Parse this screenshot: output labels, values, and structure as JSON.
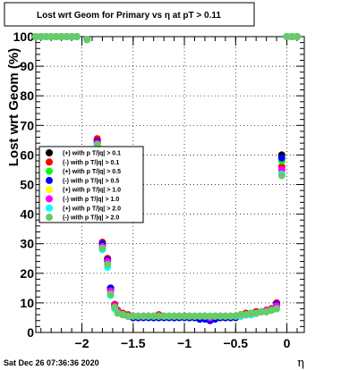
{
  "title": "Lost wrt Geom for Primary vs   η at pT > 0.11",
  "footer_date": "Sat Dec 26 07:36:36 2020",
  "chart_data": {
    "type": "scatter",
    "title": "Lost wrt Geom for Primary vs   η at pT > 0.11",
    "xlabel": "η",
    "ylabel": "Lost wrt Geom (%)",
    "xlim": [
      -2.45,
      0.17
    ],
    "ylim": [
      0,
      100
    ],
    "xticks": [
      -2,
      -1.5,
      -1,
      -0.5,
      0
    ],
    "xtick_labels": [
      "−2",
      "−1.5",
      "−1",
      "−0.5",
      "0"
    ],
    "yticks": [
      0,
      10,
      20,
      30,
      40,
      50,
      60,
      70,
      80,
      90,
      100
    ],
    "grid": true,
    "legend_position": "left",
    "series": [
      {
        "name": "(+) with p T/|q| > 0.1",
        "color": "#000000",
        "x": [
          -2.45,
          -2.4,
          -2.35,
          -2.3,
          -2.25,
          -2.2,
          -2.15,
          -2.1,
          -2.05,
          -1.95,
          -1.85,
          -1.8,
          -1.75,
          -1.72,
          -1.68,
          -1.65,
          -1.6,
          -1.55,
          -1.5,
          -1.45,
          -1.4,
          -1.35,
          -1.3,
          -1.25,
          -1.2,
          -1.15,
          -1.1,
          -1.05,
          -1.0,
          -0.95,
          -0.9,
          -0.85,
          -0.8,
          -0.75,
          -0.7,
          -0.65,
          -0.6,
          -0.55,
          -0.5,
          -0.45,
          -0.4,
          -0.35,
          -0.3,
          -0.25,
          -0.2,
          -0.15,
          -0.1,
          -0.05,
          0.0,
          0.05,
          0.1
        ],
        "y": [
          100,
          100,
          100,
          100,
          100,
          100,
          100,
          100,
          100,
          99,
          65,
          30,
          25,
          15,
          9,
          7,
          6,
          5.5,
          5,
          5,
          5.5,
          5.5,
          5,
          5,
          5.5,
          5.5,
          5,
          5.5,
          5.5,
          5,
          5,
          4.5,
          5,
          4.5,
          5,
          5,
          5,
          5,
          5.5,
          6,
          6,
          6.5,
          7,
          7,
          7.5,
          8,
          10,
          60,
          100,
          100,
          100
        ]
      },
      {
        "name": "(-) with p T/|q| > 0.1",
        "color": "#ff0000",
        "x": [
          -2.45,
          -2.4,
          -2.35,
          -2.3,
          -2.25,
          -2.2,
          -2.15,
          -2.1,
          -2.05,
          -1.95,
          -1.85,
          -1.8,
          -1.75,
          -1.72,
          -1.68,
          -1.65,
          -1.6,
          -1.55,
          -1.5,
          -1.45,
          -1.4,
          -1.35,
          -1.3,
          -1.25,
          -1.2,
          -1.15,
          -1.1,
          -1.05,
          -1.0,
          -0.95,
          -0.9,
          -0.85,
          -0.8,
          -0.75,
          -0.7,
          -0.65,
          -0.6,
          -0.55,
          -0.5,
          -0.45,
          -0.4,
          -0.35,
          -0.3,
          -0.25,
          -0.2,
          -0.15,
          -0.1,
          -0.05,
          0.0,
          0.05,
          0.1
        ],
        "y": [
          100,
          100,
          100,
          100,
          100,
          100,
          100,
          100,
          100,
          99,
          65.5,
          30.5,
          25,
          14.5,
          9.5,
          7.5,
          6.5,
          6,
          5.5,
          5.5,
          5.5,
          5.5,
          5.5,
          6,
          5.5,
          5.5,
          5.5,
          5.5,
          5.5,
          5.5,
          5.5,
          5,
          5.5,
          5,
          5,
          5.5,
          5.5,
          5.5,
          5.5,
          6,
          6.5,
          6.5,
          7,
          7,
          7.5,
          8,
          10,
          56,
          100,
          100,
          100
        ]
      },
      {
        "name": "(+) with p T/|q| > 0.5",
        "color": "#00ff00",
        "x": [
          -2.45,
          -2.4,
          -2.35,
          -2.3,
          -2.25,
          -2.2,
          -2.15,
          -2.1,
          -2.05,
          -1.95,
          -1.85,
          -1.8,
          -1.75,
          -1.72,
          -1.68,
          -1.65,
          -1.6,
          -1.55,
          -1.5,
          -1.45,
          -1.4,
          -1.35,
          -1.3,
          -1.25,
          -1.2,
          -1.15,
          -1.1,
          -1.05,
          -1.0,
          -0.95,
          -0.9,
          -0.85,
          -0.8,
          -0.75,
          -0.7,
          -0.65,
          -0.6,
          -0.55,
          -0.5,
          -0.45,
          -0.4,
          -0.35,
          -0.3,
          -0.25,
          -0.2,
          -0.15,
          -0.1,
          -0.05,
          0.0,
          0.05,
          0.1
        ],
        "y": [
          100,
          100,
          100,
          100,
          100,
          100,
          100,
          100,
          100,
          99,
          64,
          29,
          24,
          14,
          8.5,
          6.5,
          6,
          5.5,
          5.5,
          5.5,
          5.5,
          5.5,
          5.5,
          5.5,
          5.5,
          5.5,
          5.5,
          5.5,
          5.5,
          5.5,
          5.5,
          5.5,
          5.5,
          5.5,
          5.5,
          5.5,
          5.5,
          5.5,
          5.5,
          6,
          6,
          6.5,
          6.5,
          7,
          7,
          7.5,
          9,
          58,
          100,
          100,
          100
        ]
      },
      {
        "name": "(-) with p T/|q| > 0.5",
        "color": "#0000ff",
        "x": [
          -2.45,
          -2.4,
          -2.35,
          -2.3,
          -2.25,
          -2.2,
          -2.15,
          -2.1,
          -2.05,
          -1.95,
          -1.85,
          -1.8,
          -1.75,
          -1.72,
          -1.68,
          -1.65,
          -1.6,
          -1.55,
          -1.5,
          -1.45,
          -1.4,
          -1.35,
          -1.3,
          -1.25,
          -1.2,
          -1.15,
          -1.1,
          -1.05,
          -1.0,
          -0.95,
          -0.9,
          -0.85,
          -0.8,
          -0.75,
          -0.7,
          -0.65,
          -0.6,
          -0.55,
          -0.5,
          -0.45,
          -0.4,
          -0.35,
          -0.3,
          -0.25,
          -0.2,
          -0.15,
          -0.1,
          -0.05,
          0.0,
          0.05,
          0.1
        ],
        "y": [
          100,
          100,
          100,
          100,
          100,
          100,
          100,
          100,
          100,
          99,
          64.5,
          30,
          24.5,
          15,
          9,
          7,
          6,
          5.5,
          5,
          5,
          5,
          5,
          5,
          5,
          5,
          5,
          5,
          5,
          5,
          5,
          5,
          4.5,
          4.5,
          4,
          4.5,
          5,
          5,
          5,
          5,
          5.5,
          6,
          6,
          6.5,
          7,
          7,
          7.5,
          9.5,
          59,
          100,
          100,
          100
        ]
      },
      {
        "name": "(+) with p T/|q| > 1.0",
        "color": "#ffff00",
        "x": [
          -2.45,
          -2.4,
          -2.35,
          -2.3,
          -2.25,
          -2.2,
          -2.15,
          -2.1,
          -2.05,
          -1.95,
          -1.85,
          -1.8,
          -1.75,
          -1.72,
          -1.68,
          -1.65,
          -1.6,
          -1.55,
          -1.5,
          -1.45,
          -1.4,
          -1.35,
          -1.3,
          -1.25,
          -1.2,
          -1.15,
          -1.1,
          -1.05,
          -1.0,
          -0.95,
          -0.9,
          -0.85,
          -0.8,
          -0.75,
          -0.7,
          -0.65,
          -0.6,
          -0.55,
          -0.5,
          -0.45,
          -0.4,
          -0.35,
          -0.3,
          -0.25,
          -0.2,
          -0.15,
          -0.1,
          -0.05,
          0.0,
          0.05,
          0.1
        ],
        "y": [
          100,
          100,
          100,
          100,
          100,
          100,
          100,
          100,
          100,
          99,
          63.5,
          28.5,
          23,
          13.5,
          8.5,
          6.5,
          6,
          5.5,
          5.5,
          5.5,
          5.5,
          5.5,
          5.5,
          5.5,
          5.5,
          5.5,
          5.5,
          5.5,
          5.5,
          5.5,
          5.5,
          5.5,
          5.5,
          5.5,
          5.5,
          5.5,
          5.5,
          5.5,
          5.5,
          6,
          6,
          6.5,
          6.5,
          7,
          7,
          7.5,
          8.5,
          54,
          100,
          100,
          100
        ]
      },
      {
        "name": "(-) with p T/|q| > 1.0",
        "color": "#ff00ff",
        "x": [
          -2.45,
          -2.4,
          -2.35,
          -2.3,
          -2.25,
          -2.2,
          -2.15,
          -2.1,
          -2.05,
          -1.95,
          -1.85,
          -1.8,
          -1.75,
          -1.72,
          -1.68,
          -1.65,
          -1.6,
          -1.55,
          -1.5,
          -1.45,
          -1.4,
          -1.35,
          -1.3,
          -1.25,
          -1.2,
          -1.15,
          -1.1,
          -1.05,
          -1.0,
          -0.95,
          -0.9,
          -0.85,
          -0.8,
          -0.75,
          -0.7,
          -0.65,
          -0.6,
          -0.55,
          -0.5,
          -0.45,
          -0.4,
          -0.35,
          -0.3,
          -0.25,
          -0.2,
          -0.15,
          -0.1,
          -0.05,
          0.0,
          0.05,
          0.1
        ],
        "y": [
          100,
          100,
          100,
          100,
          100,
          100,
          100,
          100,
          100,
          99,
          64,
          29,
          24,
          14,
          9,
          7,
          6,
          5.5,
          5.5,
          5.5,
          5.5,
          5.5,
          5.5,
          5.5,
          5.5,
          5.5,
          5.5,
          5.5,
          5.5,
          5.5,
          5.5,
          5.5,
          5.5,
          5,
          5.5,
          5.5,
          5.5,
          5.5,
          5.5,
          6,
          6,
          6.5,
          6.5,
          7,
          7.5,
          7.5,
          9,
          55,
          100,
          100,
          100
        ]
      },
      {
        "name": "(+) with p T/|q| > 2.0",
        "color": "#00ffff",
        "x": [
          -2.45,
          -2.4,
          -2.35,
          -2.3,
          -2.25,
          -2.2,
          -2.15,
          -2.1,
          -2.05,
          -1.95,
          -1.85,
          -1.8,
          -1.75,
          -1.72,
          -1.68,
          -1.65,
          -1.6,
          -1.55,
          -1.5,
          -1.45,
          -1.4,
          -1.35,
          -1.3,
          -1.25,
          -1.2,
          -1.15,
          -1.1,
          -1.05,
          -1.0,
          -0.95,
          -0.9,
          -0.85,
          -0.8,
          -0.75,
          -0.7,
          -0.65,
          -0.6,
          -0.55,
          -0.5,
          -0.45,
          -0.4,
          -0.35,
          -0.3,
          -0.25,
          -0.2,
          -0.15,
          -0.1,
          -0.05,
          0.0,
          0.05,
          0.1
        ],
        "y": [
          100,
          100,
          100,
          100,
          100,
          100,
          100,
          100,
          100,
          99,
          63,
          28,
          22,
          12.5,
          8,
          6.5,
          6,
          5.5,
          5.5,
          5.5,
          5.5,
          5.5,
          5.5,
          5.5,
          5.5,
          5.5,
          5.5,
          5.5,
          5.5,
          5.5,
          5.5,
          5.5,
          5.5,
          5.5,
          5.5,
          5.5,
          5.5,
          5.5,
          5.5,
          5.5,
          6,
          6,
          6.5,
          7,
          7,
          7.5,
          8,
          53.5,
          100,
          100,
          100
        ]
      },
      {
        "name": "(-) with p T/|q| > 2.0",
        "color": "#66cc66",
        "x": [
          -2.45,
          -2.4,
          -2.35,
          -2.3,
          -2.25,
          -2.2,
          -2.15,
          -2.1,
          -2.05,
          -1.95,
          -1.85,
          -1.8,
          -1.75,
          -1.72,
          -1.68,
          -1.65,
          -1.6,
          -1.55,
          -1.5,
          -1.45,
          -1.4,
          -1.35,
          -1.3,
          -1.25,
          -1.2,
          -1.15,
          -1.1,
          -1.05,
          -1.0,
          -0.95,
          -0.9,
          -0.85,
          -0.8,
          -0.75,
          -0.7,
          -0.65,
          -0.6,
          -0.55,
          -0.5,
          -0.45,
          -0.4,
          -0.35,
          -0.3,
          -0.25,
          -0.2,
          -0.15,
          -0.1,
          -0.05,
          0.0,
          0.05,
          0.1
        ],
        "y": [
          100,
          100,
          100,
          100,
          100,
          100,
          100,
          100,
          100,
          99,
          63.5,
          28.5,
          23,
          13,
          8.5,
          6.5,
          6,
          5.5,
          5.5,
          5.5,
          5.5,
          5.5,
          5.5,
          5.5,
          5.5,
          5.5,
          5.5,
          5.5,
          5.5,
          5.5,
          5.5,
          5.5,
          5.5,
          5.5,
          5.5,
          5.5,
          5.5,
          5.5,
          5.5,
          6,
          6,
          6.5,
          6.5,
          7,
          7,
          7.5,
          8,
          53,
          100,
          100,
          100
        ]
      }
    ]
  }
}
